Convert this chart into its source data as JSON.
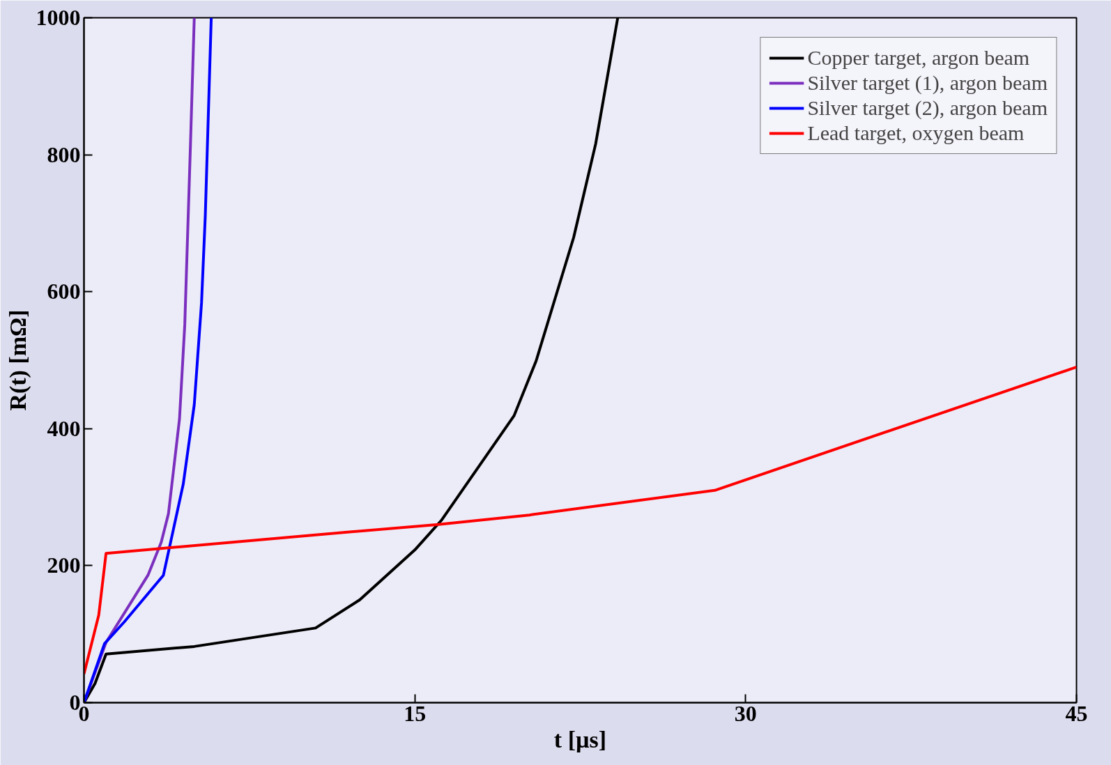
{
  "chart_data": {
    "type": "line",
    "xlabel": "t [µs]",
    "ylabel": "R(t) [mΩ]",
    "xlim": [
      0,
      45
    ],
    "ylim": [
      0,
      1000
    ],
    "xticks": [
      0,
      15,
      30,
      45
    ],
    "yticks": [
      0,
      200,
      400,
      600,
      800,
      1000
    ],
    "grid": false,
    "legend": "top right",
    "marker": "none",
    "line_style": "solid",
    "series": [
      {
        "name": "Copper target, argon beam",
        "color": "#000000",
        "x": [
          0,
          0.5,
          1,
          5,
          10.5,
          12.5,
          15,
          16.2,
          19.5,
          20.5,
          22.2,
          23.2,
          24.2
        ],
        "values": [
          0,
          28,
          71,
          82,
          109,
          150,
          223,
          266,
          419,
          499,
          679,
          816,
          1000
        ]
      },
      {
        "name": "Silver target (1), argon beam",
        "color": "#7b2fbe",
        "x": [
          0,
          1,
          2.9,
          3.5,
          3.83,
          4.33,
          4.57,
          4.83,
          5
        ],
        "values": [
          0,
          88,
          186,
          234,
          276,
          414,
          552,
          817,
          1000
        ]
      },
      {
        "name": "Silver target (2), argon beam",
        "color": "#0000ff",
        "x": [
          0,
          0.93,
          1.83,
          3.6,
          4,
          4.5,
          5,
          5.33,
          5.5,
          5.77
        ],
        "values": [
          0,
          86,
          118,
          186,
          245,
          319,
          435,
          584,
          711,
          1000
        ]
      },
      {
        "name": "Lead target, oxygen beam",
        "color": "#ff0000",
        "x": [
          0,
          0.67,
          1,
          10.5,
          16,
          20.2,
          28.6,
          45
        ],
        "values": [
          42,
          128,
          218,
          245,
          260,
          274,
          310,
          490
        ]
      }
    ]
  }
}
